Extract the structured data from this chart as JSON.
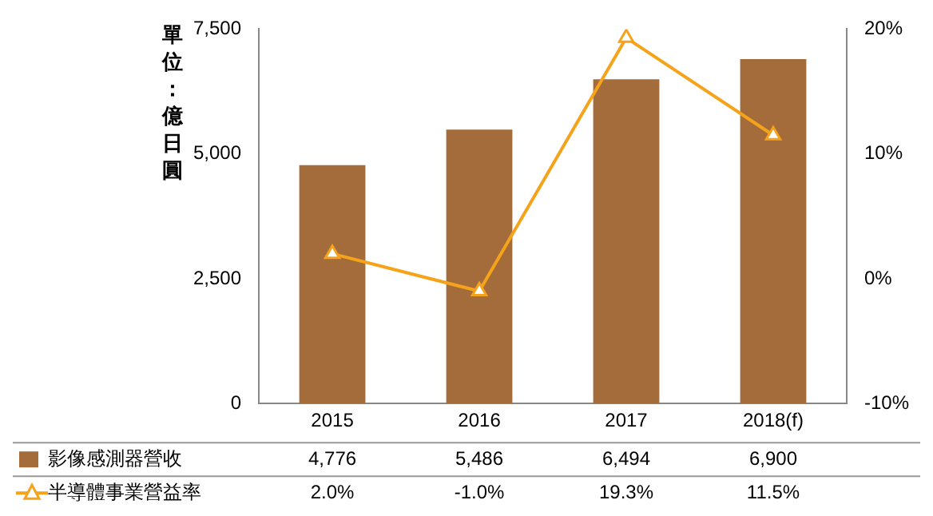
{
  "chart_data": {
    "type": "bar",
    "ylabel": "單位：億日圓",
    "categories": [
      "2015",
      "2016",
      "2017",
      "2018(f)"
    ],
    "series": [
      {
        "name": "影像感測器營收",
        "color": "#a36c3a",
        "values": [
          4776,
          5486,
          6494,
          6900
        ],
        "value_labels": [
          "4,776",
          "5,486",
          "6,494",
          "6,900"
        ]
      },
      {
        "name": "半導體事業營益率",
        "type": "line",
        "axis": "y2",
        "color": "#f5a31a",
        "marker": "triangle",
        "values": [
          2.0,
          -1.0,
          19.3,
          11.5
        ],
        "value_labels": [
          "2.0%",
          "-1.0%",
          "19.3%",
          "11.5%"
        ]
      }
    ],
    "ylim": [
      0,
      7500
    ],
    "yticks": [
      {
        "value": 0,
        "label": "0"
      },
      {
        "value": 2500,
        "label": "2,500"
      },
      {
        "value": 5000,
        "label": "5,000"
      },
      {
        "value": 7500,
        "label": "7,500"
      }
    ],
    "y2lim": [
      -10,
      20
    ],
    "y2ticks": [
      {
        "value": -10,
        "label": "-10%"
      },
      {
        "value": 0,
        "label": "0%"
      },
      {
        "value": 10,
        "label": "10%"
      },
      {
        "value": 20,
        "label": "20%"
      }
    ],
    "grid": false,
    "legend": "bottom"
  }
}
